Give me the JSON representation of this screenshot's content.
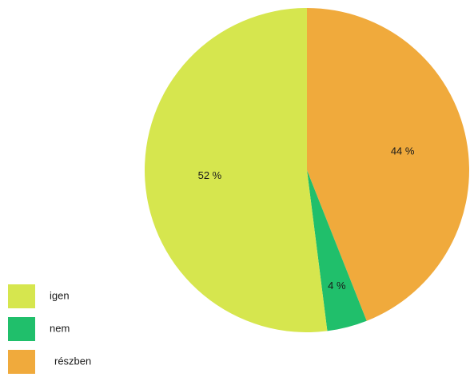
{
  "chart_data": {
    "type": "pie",
    "title": "",
    "labels": [
      "igen",
      "nem",
      "részben"
    ],
    "values": [
      52,
      4,
      44
    ],
    "value_labels": [
      "52 %",
      "4 %",
      "44 %"
    ],
    "colors": [
      "#d6e64e",
      "#20bf6b",
      "#f0aa3c"
    ],
    "start_angle_deg": 0,
    "direction": "clockwise",
    "slice_order": [
      "részben",
      "nem",
      "igen"
    ],
    "legend": {
      "position": "bottom-left",
      "entries": [
        {
          "label": "igen",
          "color": "#d6e64e"
        },
        {
          "label": "nem",
          "color": "#20bf6b"
        },
        {
          "label": "részben",
          "color": "#f0aa3c"
        }
      ]
    }
  }
}
